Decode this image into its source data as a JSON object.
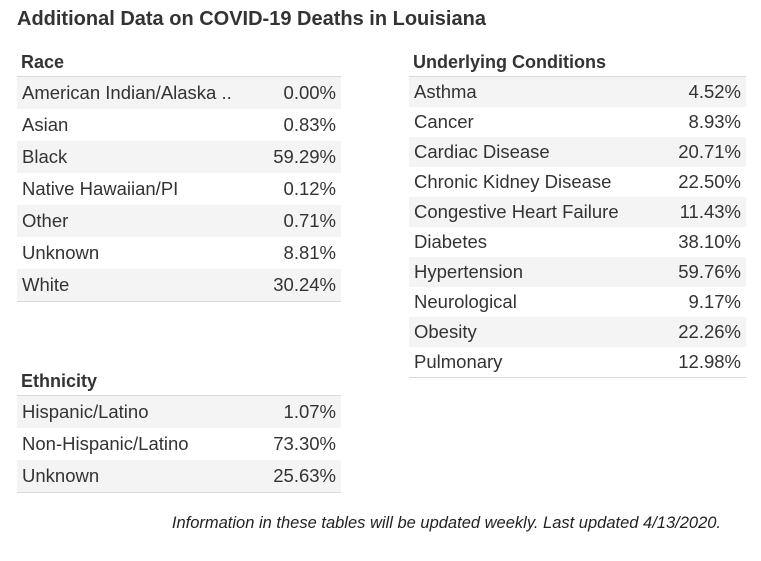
{
  "title": "Additional Data on COVID-19 Deaths in Louisiana",
  "race": {
    "heading": "Race",
    "rows": [
      {
        "label": "American Indian/Alaska ..",
        "value": "0.00%"
      },
      {
        "label": "Asian",
        "value": "0.83%"
      },
      {
        "label": "Black",
        "value": "59.29%"
      },
      {
        "label": "Native Hawaiian/PI",
        "value": "0.12%"
      },
      {
        "label": "Other",
        "value": "0.71%"
      },
      {
        "label": "Unknown",
        "value": "8.81%"
      },
      {
        "label": "White",
        "value": "30.24%"
      }
    ]
  },
  "ethnicity": {
    "heading": "Ethnicity",
    "rows": [
      {
        "label": "Hispanic/Latino",
        "value": "1.07%"
      },
      {
        "label": "Non-Hispanic/Latino",
        "value": "73.30%"
      },
      {
        "label": "Unknown",
        "value": "25.63%"
      }
    ]
  },
  "conditions": {
    "heading": "Underlying Conditions",
    "rows": [
      {
        "label": "Asthma",
        "value": "4.52%"
      },
      {
        "label": "Cancer",
        "value": "8.93%"
      },
      {
        "label": "Cardiac Disease",
        "value": "20.71%"
      },
      {
        "label": "Chronic Kidney Disease",
        "value": "22.50%"
      },
      {
        "label": "Congestive Heart Failure",
        "value": "11.43%"
      },
      {
        "label": "Diabetes",
        "value": "38.10%"
      },
      {
        "label": "Hypertension",
        "value": "59.76%"
      },
      {
        "label": "Neurological",
        "value": "9.17%"
      },
      {
        "label": "Obesity",
        "value": "22.26%"
      },
      {
        "label": "Pulmonary",
        "value": "12.98%"
      }
    ]
  },
  "footer": "Information in these tables will be updated weekly. Last updated 4/13/2020."
}
